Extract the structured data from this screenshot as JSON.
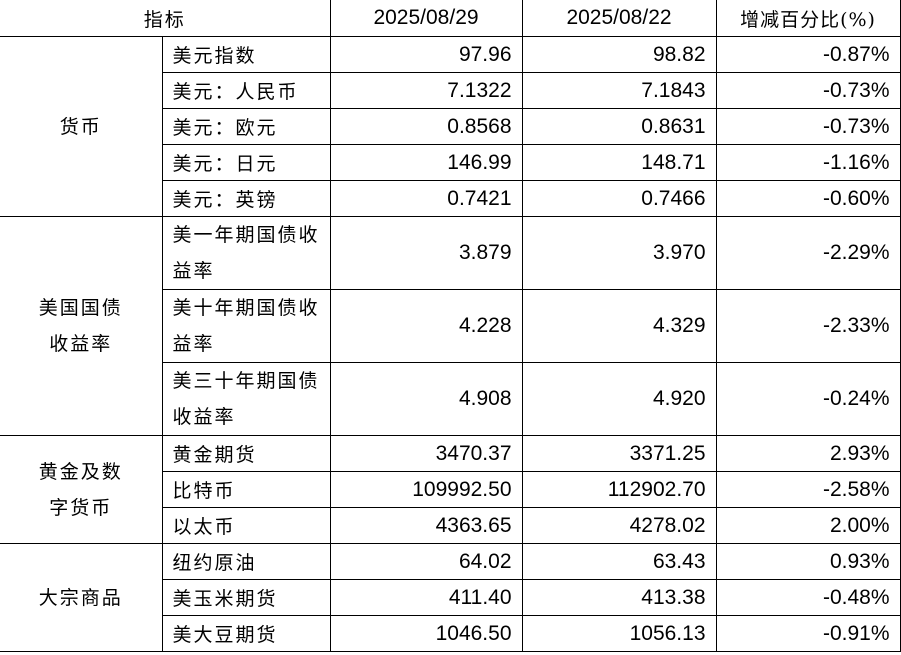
{
  "header": {
    "indicator": "指标",
    "date1": "2025/08/29",
    "date2": "2025/08/22",
    "change": "增减百分比(%)"
  },
  "groups": [
    {
      "category": "货币",
      "rows": [
        {
          "name": "美元指数",
          "v1": "97.96",
          "v2": "98.82",
          "chg": "-0.87%"
        },
        {
          "name": "美元：人民币",
          "v1": "7.1322",
          "v2": "7.1843",
          "chg": "-0.73%"
        },
        {
          "name": "美元：欧元",
          "v1": "0.8568",
          "v2": "0.8631",
          "chg": "-0.73%"
        },
        {
          "name": "美元：日元",
          "v1": "146.99",
          "v2": "148.71",
          "chg": "-1.16%"
        },
        {
          "name": "美元：英镑",
          "v1": "0.7421",
          "v2": "0.7466",
          "chg": "-0.60%"
        }
      ]
    },
    {
      "category": "美国国债收益率",
      "rows": [
        {
          "name": "美一年期国债收益率",
          "v1": "3.879",
          "v2": "3.970",
          "chg": "-2.29%"
        },
        {
          "name": "美十年期国债收益率",
          "v1": "4.228",
          "v2": "4.329",
          "chg": "-2.33%"
        },
        {
          "name": "美三十年期国债收益率",
          "v1": "4.908",
          "v2": "4.920",
          "chg": "-0.24%"
        }
      ]
    },
    {
      "category": "黄金及数字货币",
      "rows": [
        {
          "name": "黄金期货",
          "v1": "3470.37",
          "v2": "3371.25",
          "chg": "2.93%"
        },
        {
          "name": "比特币",
          "v1": "109992.50",
          "v2": "112902.70",
          "chg": "-2.58%"
        },
        {
          "name": "以太币",
          "v1": "4363.65",
          "v2": "4278.02",
          "chg": "2.00%"
        }
      ]
    },
    {
      "category": "大宗商品",
      "rows": [
        {
          "name": "纽约原油",
          "v1": "64.02",
          "v2": "63.43",
          "chg": "0.93%"
        },
        {
          "name": "美玉米期货",
          "v1": "411.40",
          "v2": "413.38",
          "chg": "-0.48%"
        },
        {
          "name": "美大豆期货",
          "v1": "1046.50",
          "v2": "1056.13",
          "chg": "-0.91%"
        }
      ]
    }
  ]
}
